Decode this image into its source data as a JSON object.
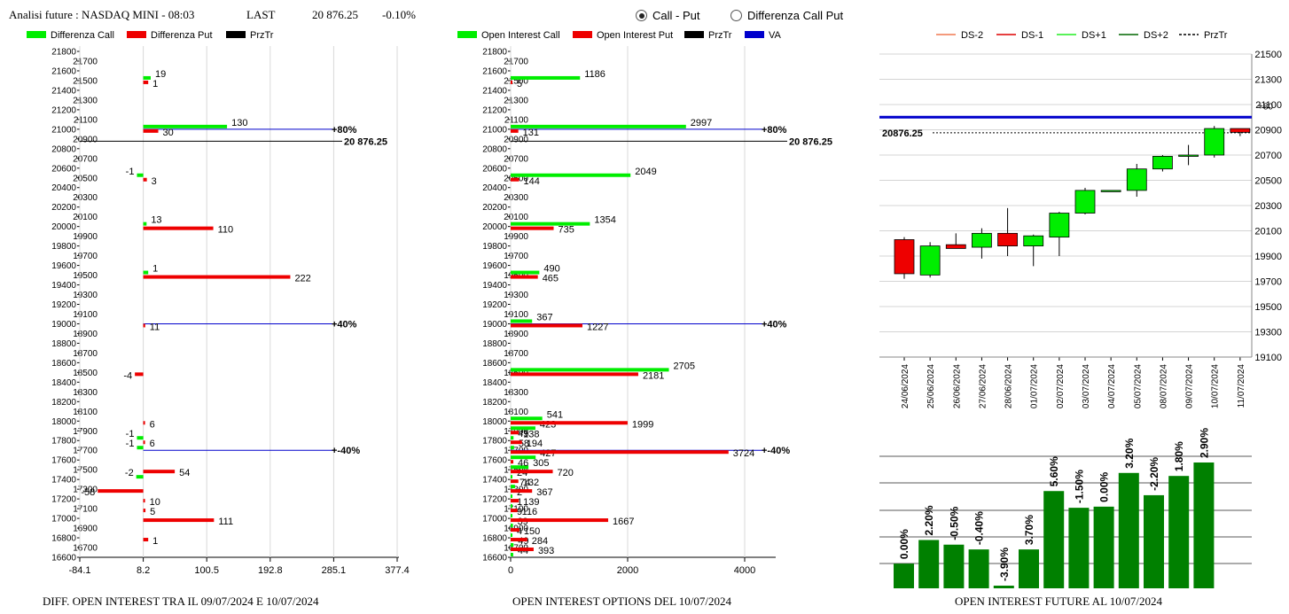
{
  "header": {
    "title": "Analisi future : NASDAQ MINI - 08:03",
    "last_label": "LAST",
    "last_value": "20 876.25",
    "change": "-0.10%"
  },
  "radio": {
    "option1": "Call - Put",
    "option2": "Differenza Call Put",
    "selected": "option1"
  },
  "captions": {
    "left": "DIFF. OPEN INTEREST TRA IL 09/07/2024 E 10/07/2024",
    "middle": "OPEN INTEREST OPTIONS DEL 10/07/2024",
    "right": "OPEN INTEREST FUTURE AL 10/07/2024"
  },
  "colors": {
    "green": "#00ee00",
    "red": "#ee0000",
    "black": "#000000",
    "blue": "#0000cc",
    "dark_green": "#008000"
  },
  "chart_data": [
    {
      "type": "bar",
      "orientation": "horizontal",
      "legend": [
        "Differenza Call",
        "Differenza Put",
        "PrzTr"
      ],
      "xlim": [
        -84.1,
        377.4
      ],
      "xticks": [
        "-84.1",
        "8.2",
        "100.5",
        "192.8",
        "285.1",
        "377.4"
      ],
      "ylim": [
        16600,
        21800
      ],
      "yticks": [
        16600,
        16700,
        16800,
        16900,
        17000,
        17100,
        17200,
        17300,
        17400,
        17500,
        17600,
        17700,
        17800,
        17900,
        18000,
        18100,
        18200,
        18300,
        18400,
        18500,
        18600,
        18700,
        18800,
        18900,
        19000,
        19100,
        19200,
        19300,
        19400,
        19500,
        19600,
        19700,
        19800,
        19900,
        20000,
        20100,
        20200,
        20300,
        20400,
        20500,
        20600,
        20700,
        20800,
        20900,
        21000,
        21100,
        21200,
        21300,
        21400,
        21500,
        21600,
        21700,
        21800
      ],
      "call": [
        {
          "strike": 21500,
          "value": 19,
          "label": "19"
        },
        {
          "strike": 21000,
          "value": 130,
          "label": "130"
        },
        {
          "strike": 20500,
          "value": -1,
          "label": "-1"
        },
        {
          "strike": 20000,
          "value": 13,
          "label": "13"
        },
        {
          "strike": 19500,
          "value": 1,
          "label": "1"
        },
        {
          "strike": 17800,
          "value": -1,
          "label": "-1"
        },
        {
          "strike": 17700,
          "value": -1,
          "label": "-1"
        },
        {
          "strike": 17400,
          "value": -2,
          "label": "-2"
        }
      ],
      "put": [
        {
          "strike": 21500,
          "value": 1,
          "label": "1"
        },
        {
          "strike": 21000,
          "value": 30,
          "label": "30"
        },
        {
          "strike": 20500,
          "value": 3,
          "label": "3"
        },
        {
          "strike": 20000,
          "value": 110,
          "label": "110"
        },
        {
          "strike": 19500,
          "value": 222,
          "label": "222"
        },
        {
          "strike": 19000,
          "value": 11,
          "label": "11"
        },
        {
          "strike": 18500,
          "value": -4,
          "label": "-4"
        },
        {
          "strike": 18000,
          "value": 6,
          "label": "6"
        },
        {
          "strike": 17800,
          "value": 6,
          "label": "6"
        },
        {
          "strike": 17500,
          "value": 54,
          "label": "54"
        },
        {
          "strike": 17300,
          "value": -58,
          "label": "-58"
        },
        {
          "strike": 17200,
          "value": 10,
          "label": "10"
        },
        {
          "strike": 17100,
          "value": 5,
          "label": "5"
        },
        {
          "strike": 17000,
          "value": 111,
          "label": "111"
        },
        {
          "strike": 16800,
          "value": 1,
          "label": "1"
        }
      ],
      "levels": [
        {
          "strike": 21000,
          "label": "80%"
        },
        {
          "strike": 19000,
          "label": "40%"
        },
        {
          "strike": 17700,
          "label": "-40%"
        }
      ],
      "price": {
        "value": 20876.25,
        "label": "20 876.25"
      }
    },
    {
      "type": "bar",
      "orientation": "horizontal",
      "legend": [
        "Open Interest Call",
        "Open Interest Put",
        "PrzTr",
        "VA"
      ],
      "xlim": [
        0,
        4500
      ],
      "xticks": [
        0,
        2000,
        4000
      ],
      "ylim": [
        16600,
        21800
      ],
      "yticks": [
        16600,
        16700,
        16800,
        16900,
        17000,
        17100,
        17200,
        17300,
        17400,
        17500,
        17600,
        17700,
        17800,
        17900,
        18000,
        18100,
        18200,
        18300,
        18400,
        18500,
        18600,
        18700,
        18800,
        18900,
        19000,
        19100,
        19200,
        19300,
        19400,
        19500,
        19600,
        19700,
        19800,
        19900,
        20000,
        20100,
        20200,
        20300,
        20400,
        20500,
        20600,
        20700,
        20800,
        20900,
        21000,
        21100,
        21200,
        21300,
        21400,
        21500,
        21600,
        21700,
        21800
      ],
      "call": [
        {
          "strike": 21500,
          "value": 1186,
          "label": "1186"
        },
        {
          "strike": 21000,
          "value": 2997,
          "label": "2997"
        },
        {
          "strike": 20500,
          "value": 2049,
          "label": "2049"
        },
        {
          "strike": 20000,
          "value": 1354,
          "label": "1354"
        },
        {
          "strike": 19500,
          "value": 490,
          "label": "490"
        },
        {
          "strike": 19000,
          "value": 367,
          "label": "367"
        },
        {
          "strike": 18500,
          "value": 2705,
          "label": "2705"
        },
        {
          "strike": 18000,
          "value": 541,
          "label": "541"
        },
        {
          "strike": 17900,
          "value": 423,
          "label": "423"
        },
        {
          "strike": 17800,
          "value": 49,
          "label": "49"
        },
        {
          "strike": 17700,
          "value": 58,
          "label": "58"
        },
        {
          "strike": 17600,
          "value": 427,
          "label": "427"
        },
        {
          "strike": 17500,
          "value": 305,
          "label": "305"
        },
        {
          "strike": 17400,
          "value": 24,
          "label": "24"
        },
        {
          "strike": 17300,
          "value": 74,
          "label": "74"
        },
        {
          "strike": 17200,
          "value": 2,
          "label": "2"
        },
        {
          "strike": 17100,
          "value": 1,
          "label": "1"
        },
        {
          "strike": 17000,
          "value": 9,
          "label": "9"
        },
        {
          "strike": 16900,
          "value": 39,
          "label": "39"
        },
        {
          "strike": 16800,
          "value": 4,
          "label": "4"
        },
        {
          "strike": 16700,
          "value": 49,
          "label": "49"
        },
        {
          "strike": 16600,
          "value": 44,
          "label": "44"
        }
      ],
      "put": [
        {
          "strike": 21500,
          "value": 5,
          "label": "5"
        },
        {
          "strike": 21000,
          "value": 131,
          "label": "131"
        },
        {
          "strike": 20500,
          "value": 144,
          "label": "144"
        },
        {
          "strike": 20000,
          "value": 735,
          "label": "735"
        },
        {
          "strike": 19500,
          "value": 465,
          "label": "465"
        },
        {
          "strike": 19000,
          "value": 1227,
          "label": "1227"
        },
        {
          "strike": 18500,
          "value": 2181,
          "label": "2181"
        },
        {
          "strike": 18000,
          "value": 1999,
          "label": "1999"
        },
        {
          "strike": 17900,
          "value": 138,
          "label": "138"
        },
        {
          "strike": 17800,
          "value": 194,
          "label": "194"
        },
        {
          "strike": 17700,
          "value": 3724,
          "label": "3724"
        },
        {
          "strike": 17600,
          "value": 46,
          "label": "46"
        },
        {
          "strike": 17500,
          "value": 720,
          "label": "720"
        },
        {
          "strike": 17400,
          "value": 132,
          "label": "132"
        },
        {
          "strike": 17300,
          "value": 367,
          "label": "367"
        },
        {
          "strike": 17200,
          "value": 139,
          "label": "139"
        },
        {
          "strike": 17100,
          "value": 116,
          "label": "116"
        },
        {
          "strike": 17000,
          "value": 1667,
          "label": "1667"
        },
        {
          "strike": 16900,
          "value": 150,
          "label": "150"
        },
        {
          "strike": 16800,
          "value": 284,
          "label": "284"
        },
        {
          "strike": 16700,
          "value": 393,
          "label": "393"
        }
      ],
      "levels": [
        {
          "strike": 21000,
          "label": "80%"
        },
        {
          "strike": 19000,
          "label": "40%"
        },
        {
          "strike": 17700,
          "label": "-40%"
        }
      ],
      "price": {
        "value": 20876.25,
        "label": "20 876.25"
      }
    },
    {
      "type": "candlestick",
      "legend": [
        "DS-2",
        "DS-1",
        "DS+1",
        "DS+2",
        "PrzTr"
      ],
      "ylim": [
        19100,
        21500
      ],
      "yticks": [
        19100,
        19300,
        19500,
        19700,
        19900,
        20100,
        20300,
        20500,
        20700,
        20900,
        21100,
        21300,
        21500
      ],
      "dates": [
        "24/06/2024",
        "25/06/2024",
        "26/06/2024",
        "27/06/2024",
        "28/06/2024",
        "01/07/2024",
        "02/07/2024",
        "03/07/2024",
        "04/07/2024",
        "05/07/2024",
        "08/07/2024",
        "09/07/2024",
        "10/07/2024",
        "11/07/2024"
      ],
      "candles": [
        {
          "open": 20030,
          "high": 20050,
          "low": 19720,
          "close": 19760
        },
        {
          "open": 19750,
          "high": 20010,
          "low": 19730,
          "close": 19980
        },
        {
          "open": 19990,
          "high": 20080,
          "low": 19960,
          "close": 19960
        },
        {
          "open": 19970,
          "high": 20120,
          "low": 19880,
          "close": 20080
        },
        {
          "open": 20080,
          "high": 20280,
          "low": 19900,
          "close": 19980
        },
        {
          "open": 19980,
          "high": 20070,
          "low": 19820,
          "close": 20060
        },
        {
          "open": 20050,
          "high": 20250,
          "low": 19900,
          "close": 20240
        },
        {
          "open": 20240,
          "high": 20440,
          "low": 20230,
          "close": 20420
        },
        {
          "open": 20420,
          "high": 20420,
          "low": 20420,
          "close": 20420
        },
        {
          "open": 20420,
          "high": 20630,
          "low": 20370,
          "close": 20590
        },
        {
          "open": 20590,
          "high": 20700,
          "low": 20570,
          "close": 20690
        },
        {
          "open": 20690,
          "high": 20780,
          "low": 20620,
          "close": 20700
        },
        {
          "open": 20700,
          "high": 20930,
          "low": 20680,
          "close": 20910
        },
        {
          "open": 20910,
          "high": 20910,
          "low": 20850,
          "close": 20880
        }
      ],
      "va_line": {
        "value": 21000,
        "label": "+80"
      },
      "price": {
        "value": 20876.25,
        "label": "20876.25"
      }
    },
    {
      "type": "bar",
      "values": [
        0.0,
        2.2,
        -0.5,
        -0.4,
        -3.9,
        3.7,
        5.6,
        -1.5,
        0.0,
        3.2,
        -2.2,
        1.8,
        2.9
      ],
      "labels": [
        "0.00%",
        "2.20%",
        "-0.50%",
        "-0.40%",
        "-3.90%",
        "3.70%",
        "5.60%",
        "-1.50%",
        "0.00%",
        "3.20%",
        "-2.20%",
        "1.80%",
        "2.90%"
      ],
      "heights": [
        0.196,
        0.384,
        0.347,
        0.309,
        0.021,
        0.309,
        0.773,
        0.64,
        0.649,
        0.917,
        0.74,
        0.893,
        1.0
      ]
    }
  ]
}
